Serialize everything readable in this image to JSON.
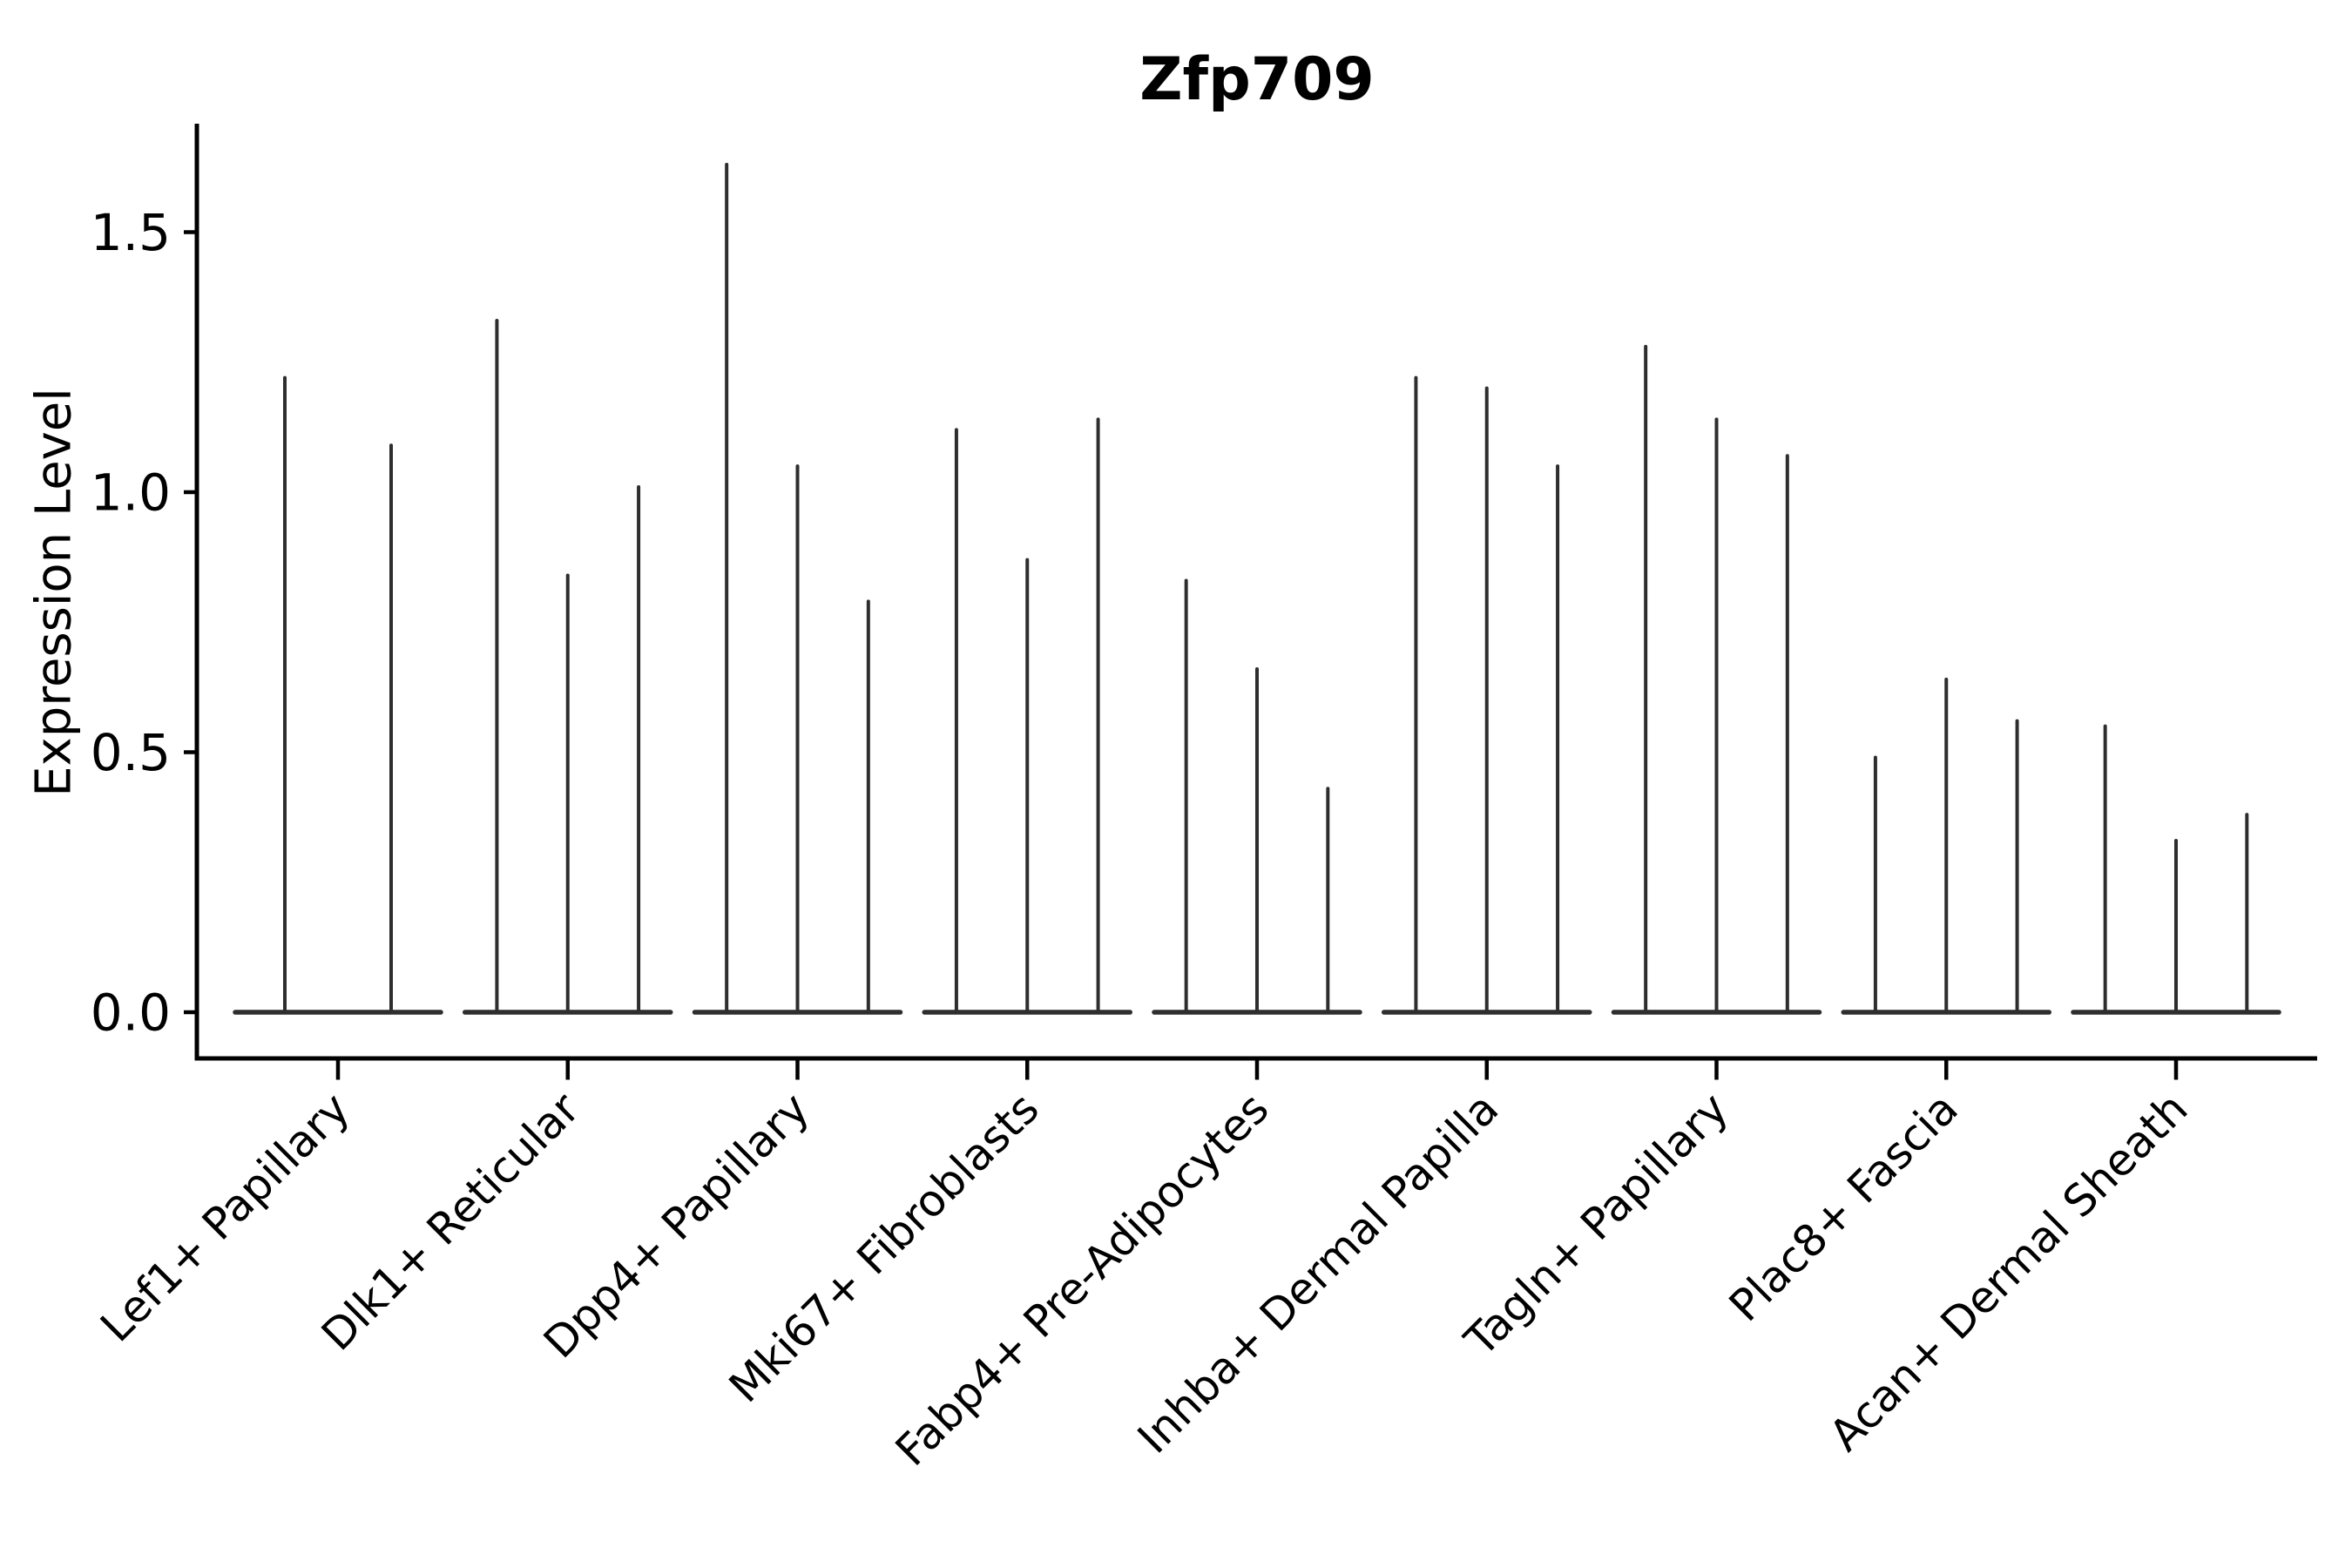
{
  "figure": {
    "title": "Zfp709"
  },
  "chart_data": {
    "type": "violin",
    "title": "Zfp709",
    "xlabel": "",
    "ylabel": "Expression Level",
    "ylim": [
      -0.09,
      1.71
    ],
    "yticks": [
      0.0,
      0.5,
      1.0,
      1.5
    ],
    "ytick_labels": [
      "0.0",
      "0.5",
      "1.0",
      "1.5"
    ],
    "grid": false,
    "legend": null,
    "categories": [
      "Lef1+ Papillary",
      "Dlk1+ Reticular",
      "Dpp4+ Papillary",
      "Mki67+ Fibroblasts",
      "Fabp4+ Pre-Adipocytes",
      "Inhba+ Dermal Papilla",
      "Tagln+ Papillary",
      "Plac8+ Fascia",
      "Acan+ Dermal Sheath"
    ],
    "series": [
      {
        "category": "Lef1+ Papillary",
        "violin_max_values": [
          1.22,
          1.09
        ]
      },
      {
        "category": "Dlk1+ Reticular",
        "violin_max_values": [
          1.33,
          0.84,
          1.01
        ]
      },
      {
        "category": "Dpp4+ Papillary",
        "violin_max_values": [
          1.63,
          1.05,
          0.79
        ]
      },
      {
        "category": "Mki67+ Fibroblasts",
        "violin_max_values": [
          1.12,
          0.87,
          1.14
        ]
      },
      {
        "category": "Fabp4+ Pre-Adipocytes",
        "violin_max_values": [
          0.83,
          0.66,
          0.43
        ]
      },
      {
        "category": "Inhba+ Dermal Papilla",
        "violin_max_values": [
          1.22,
          1.2,
          1.05
        ]
      },
      {
        "category": "Tagln+ Papillary",
        "violin_max_values": [
          1.28,
          1.14,
          1.07
        ]
      },
      {
        "category": "Plac8+ Fascia",
        "violin_max_values": [
          0.49,
          0.64,
          0.56
        ]
      },
      {
        "category": "Acan+ Dermal Sheath",
        "violin_max_values": [
          0.55,
          0.33,
          0.38
        ]
      }
    ],
    "baseline_value": 0.0,
    "colors": {
      "violin": "#2e2e2e",
      "axis": "#000000",
      "text": "#000000",
      "background": "#ffffff"
    }
  }
}
